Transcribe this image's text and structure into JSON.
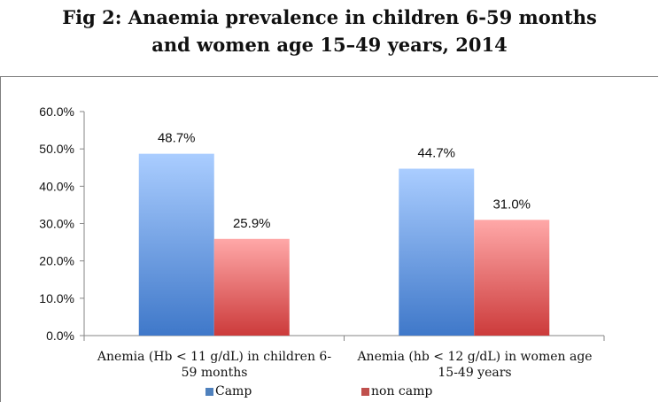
{
  "chart_data": {
    "type": "bar",
    "title_lines": [
      "Fig 2: Anaemia prevalence in children 6-59 months",
      "and women age 15–49 years, 2014"
    ],
    "categories": [
      [
        "Anemia (Hb < 11 g/dL) in children 6-",
        "59 months"
      ],
      [
        "Anemia (hb < 12 g/dL) in women age",
        "15-49 years"
      ]
    ],
    "series": [
      {
        "name": "Camp",
        "values": [
          48.7,
          44.7
        ],
        "labels": [
          "48.7%",
          "44.7%"
        ],
        "color": "#4f81bd"
      },
      {
        "name": "non camp",
        "values": [
          25.9,
          31.0
        ],
        "labels": [
          "25.9%",
          "31.0%"
        ],
        "color": "#c0504d"
      }
    ],
    "ylim": [
      0,
      60
    ],
    "yticks": [
      "0.0%",
      "10.0%",
      "20.0%",
      "30.0%",
      "40.0%",
      "50.0%",
      "60.0%"
    ],
    "grid": false,
    "legend_position": "bottom"
  }
}
